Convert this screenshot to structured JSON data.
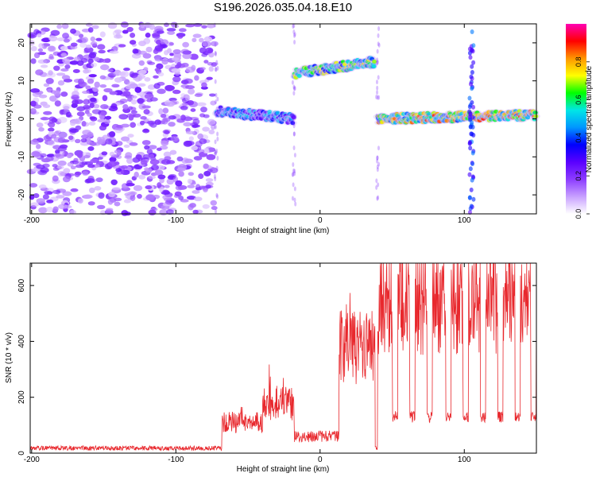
{
  "title": "S196.2026.035.04.18.E10",
  "spectrogram": {
    "type": "heatmap",
    "xlabel": "Height of straight line (km)",
    "ylabel": "Frequency (Hz)",
    "xlim": [
      -201,
      150
    ],
    "ylim": [
      -25,
      25
    ],
    "xticks": [
      -200,
      -100,
      0,
      100
    ],
    "yticks": [
      -20,
      -10,
      0,
      10,
      20
    ],
    "colorbar": {
      "label": "Normalized spectral amplitude",
      "range": [
        0,
        1
      ],
      "ticks": [
        "0.0",
        "0.2",
        "0.4",
        "0.6",
        "0.8"
      ],
      "colors": [
        "#ffffff",
        "#c8a0ff",
        "#8c3cff",
        "#5a00ff",
        "#0000ff",
        "#0096ff",
        "#00e6e6",
        "#00ff00",
        "#ffff00",
        "#ff9600",
        "#ff0000",
        "#ff00b4"
      ]
    },
    "regions": [
      {
        "name": "noise",
        "x": [
          -201,
          -73
        ],
        "freq_hz": "scattered -25..25",
        "amplitude": 0.15
      },
      {
        "name": "track-1",
        "x": [
          -72,
          -18
        ],
        "freq_hz": [
          2,
          0
        ],
        "amplitude": 0.55
      },
      {
        "name": "track-2",
        "x": [
          -18,
          38
        ],
        "freq_hz": [
          12,
          15
        ],
        "amplitude": 0.75
      },
      {
        "name": "track-3",
        "x": [
          40,
          150
        ],
        "freq_hz": [
          0,
          1
        ],
        "amplitude": 0.9
      }
    ]
  },
  "snr": {
    "type": "line",
    "xlabel": "Height of straight line (km)",
    "ylabel": "SNR (10 * v/v)",
    "xlim": [
      -201,
      150
    ],
    "ylim": [
      0,
      680
    ],
    "xticks": [
      -200,
      -100,
      0,
      100
    ],
    "yticks": [
      0,
      200,
      400,
      600
    ],
    "color": "#e8282d",
    "series": [
      {
        "x_range": [
          -201,
          -70
        ],
        "level": 18
      },
      {
        "x_range": [
          -68,
          -40
        ],
        "level": 110
      },
      {
        "x_range": [
          -40,
          -18
        ],
        "level": 180
      },
      {
        "x_range": [
          -18,
          13
        ],
        "level": 60
      },
      {
        "x_range": [
          13,
          38
        ],
        "level": 380
      },
      {
        "x_range": [
          40,
          150
        ],
        "level": 540
      }
    ],
    "dips": [
      52,
      64,
      76,
      89,
      101,
      113,
      125,
      137,
      148
    ],
    "dip_level": 130
  }
}
